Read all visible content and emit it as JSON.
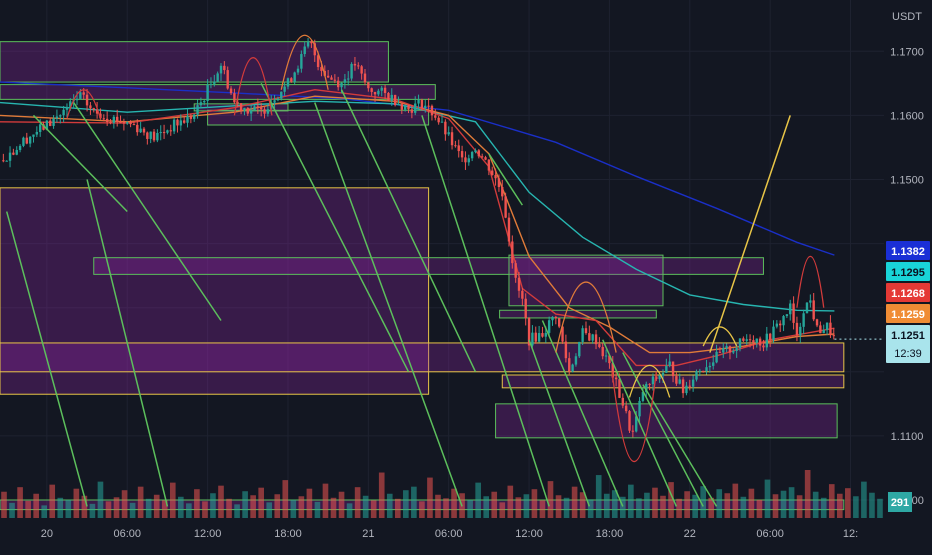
{
  "chart_data": {
    "type": "candlestick",
    "title": "",
    "currency": "USDT",
    "y_range": [
      1.1,
      1.178
    ],
    "y_ticks": [
      "1.1700",
      "1.1600",
      "1.1500",
      "1.1100",
      "1.1000"
    ],
    "x_ticks": [
      "20",
      "06:00",
      "12:00",
      "18:00",
      "21",
      "06:00",
      "12:00",
      "18:00",
      "22",
      "06:00",
      "12:"
    ],
    "x_tick_times": [
      0,
      6,
      12,
      18,
      24,
      30,
      36,
      42,
      48,
      54,
      60
    ],
    "x_range_hours": [
      -3.5,
      62.5
    ],
    "grid": true,
    "close_path": [
      [
        -3.5,
        1.153
      ],
      [
        -2.5,
        1.1545
      ],
      [
        -1.5,
        1.1565
      ],
      [
        0,
        1.1585
      ],
      [
        1.5,
        1.161
      ],
      [
        2.5,
        1.163
      ],
      [
        3.5,
        1.1605
      ],
      [
        5,
        1.1595
      ],
      [
        6.5,
        1.1585
      ],
      [
        8,
        1.1565
      ],
      [
        9.5,
        1.1585
      ],
      [
        11,
        1.16
      ],
      [
        12,
        1.164
      ],
      [
        13,
        1.168
      ],
      [
        14,
        1.162
      ],
      [
        15,
        1.161
      ],
      [
        16,
        1.1605
      ],
      [
        17,
        1.163
      ],
      [
        18,
        1.165
      ],
      [
        19,
        1.169
      ],
      [
        19.6,
        1.1715
      ],
      [
        20.3,
        1.168
      ],
      [
        21,
        1.166
      ],
      [
        22,
        1.165
      ],
      [
        23,
        1.168
      ],
      [
        24,
        1.164
      ],
      [
        25,
        1.1635
      ],
      [
        26,
        1.1625
      ],
      [
        27,
        1.161
      ],
      [
        28,
        1.162
      ],
      [
        29,
        1.16
      ],
      [
        30,
        1.1565
      ],
      [
        31,
        1.153
      ],
      [
        32,
        1.155
      ],
      [
        33,
        1.152
      ],
      [
        34,
        1.148
      ],
      [
        35,
        1.134
      ],
      [
        35.5,
        1.131
      ],
      [
        36,
        1.125
      ],
      [
        37,
        1.126
      ],
      [
        38,
        1.129
      ],
      [
        39,
        1.12
      ],
      [
        40,
        1.126
      ],
      [
        41,
        1.125
      ],
      [
        42,
        1.121
      ],
      [
        43,
        1.115
      ],
      [
        43.7,
        1.11
      ],
      [
        44.5,
        1.117
      ],
      [
        45.5,
        1.119
      ],
      [
        46.5,
        1.121
      ],
      [
        47.5,
        1.117
      ],
      [
        48.5,
        1.12
      ],
      [
        49.5,
        1.1215
      ],
      [
        50.5,
        1.123
      ],
      [
        51.5,
        1.124
      ],
      [
        52.5,
        1.1255
      ],
      [
        53.5,
        1.1245
      ],
      [
        54.5,
        1.127
      ],
      [
        55.5,
        1.13
      ],
      [
        56,
        1.125
      ],
      [
        56.5,
        1.13
      ],
      [
        57,
        1.131
      ],
      [
        57.5,
        1.1265
      ],
      [
        58.3,
        1.127
      ],
      [
        58.8,
        1.1251
      ]
    ],
    "volume_series": [
      52,
      30,
      61,
      34,
      48,
      25,
      66,
      40,
      36,
      58,
      44,
      28,
      72,
      33,
      41,
      55,
      30,
      62,
      38,
      46,
      35,
      70,
      42,
      29,
      57,
      33,
      49,
      64,
      38,
      27,
      53,
      45,
      60,
      31,
      47,
      75,
      36,
      43,
      58,
      32,
      68,
      40,
      52,
      29,
      61,
      44,
      35,
      90,
      48,
      38,
      55,
      62,
      33,
      80,
      46,
      39,
      58,
      49,
      36,
      70,
      43,
      52,
      31,
      64,
      41,
      47,
      57,
      35,
      73,
      45,
      40,
      62,
      51,
      37,
      85,
      48,
      55,
      42,
      66,
      39,
      50,
      60,
      44,
      71,
      38,
      53,
      46,
      63,
      40,
      57,
      49,
      68,
      42,
      58,
      36,
      76,
      47,
      54,
      61,
      45,
      95,
      52,
      40,
      67,
      48,
      59,
      43,
      72,
      50,
      38
    ],
    "moving_averages": [
      {
        "key": "ma_blue",
        "color": "#1a2fc7",
        "label": "1.1382",
        "points": [
          [
            -3.5,
            1.1652
          ],
          [
            6,
            1.1643
          ],
          [
            14,
            1.1635
          ],
          [
            22,
            1.1626
          ],
          [
            30,
            1.1608
          ],
          [
            38,
            1.1558
          ],
          [
            44,
            1.1505
          ],
          [
            50,
            1.1455
          ],
          [
            56,
            1.1402
          ],
          [
            58.8,
            1.1382
          ]
        ]
      },
      {
        "key": "ma_teal",
        "color": "#27b5b0",
        "label": "1.1295",
        "points": [
          [
            -3.5,
            1.162
          ],
          [
            6,
            1.1605
          ],
          [
            14,
            1.1615
          ],
          [
            20,
            1.1622
          ],
          [
            26,
            1.1618
          ],
          [
            32,
            1.159
          ],
          [
            36,
            1.148
          ],
          [
            40,
            1.141
          ],
          [
            44,
            1.136
          ],
          [
            48,
            1.132
          ],
          [
            52,
            1.1305
          ],
          [
            56,
            1.1296
          ],
          [
            58.8,
            1.1295
          ]
        ]
      },
      {
        "key": "ma_orange",
        "color": "#e07b39",
        "label": "1.1259",
        "points": [
          [
            -3.5,
            1.16
          ],
          [
            6,
            1.159
          ],
          [
            14,
            1.1605
          ],
          [
            20,
            1.163
          ],
          [
            26,
            1.1622
          ],
          [
            30,
            1.16
          ],
          [
            33,
            1.154
          ],
          [
            36,
            1.138
          ],
          [
            39,
            1.13
          ],
          [
            42,
            1.127
          ],
          [
            45,
            1.123
          ],
          [
            48,
            1.123
          ],
          [
            52,
            1.124
          ],
          [
            56,
            1.1255
          ],
          [
            58.8,
            1.1259
          ]
        ]
      },
      {
        "key": "ma_red",
        "color": "#d23b3b",
        "label": "1.1268",
        "points": [
          [
            -3.5,
            1.159
          ],
          [
            6,
            1.1588
          ],
          [
            14,
            1.1612
          ],
          [
            20,
            1.164
          ],
          [
            26,
            1.1625
          ],
          [
            30,
            1.1595
          ],
          [
            33,
            1.152
          ],
          [
            35.5,
            1.133
          ],
          [
            38,
            1.129
          ],
          [
            41,
            1.128
          ],
          [
            44,
            1.121
          ],
          [
            47,
            1.121
          ],
          [
            50,
            1.1225
          ],
          [
            54,
            1.125
          ],
          [
            58.8,
            1.1268
          ]
        ]
      }
    ],
    "zones": [
      {
        "t0": -3.5,
        "t1": 25.5,
        "p0": 1.1652,
        "p1": 1.1715,
        "stroke": "#5cbf5c"
      },
      {
        "t0": 12,
        "t1": 28.5,
        "p0": 1.1585,
        "p1": 1.1608,
        "stroke": "#5cbf5c"
      },
      {
        "t0": 11,
        "t1": 18,
        "p0": 1.1607,
        "p1": 1.1618,
        "stroke": "#5cbf5c"
      },
      {
        "t0": -3.5,
        "t1": 29,
        "p0": 1.1625,
        "p1": 1.1648,
        "stroke": "#5cbf5c"
      },
      {
        "t0": -3.5,
        "t1": 28.5,
        "p0": 1.1165,
        "p1": 1.1487,
        "stroke": "#e8c547"
      },
      {
        "t0": 3.5,
        "t1": 53.5,
        "p0": 1.1352,
        "p1": 1.1378,
        "stroke": "#5cbf5c"
      },
      {
        "t0": 34.5,
        "t1": 46,
        "p0": 1.1303,
        "p1": 1.1382,
        "stroke": "#5cbf5c"
      },
      {
        "t0": 33.8,
        "t1": 45.5,
        "p0": 1.1284,
        "p1": 1.1296,
        "stroke": "#5cbf5c"
      },
      {
        "t0": -3.5,
        "t1": 59.5,
        "p0": 1.12,
        "p1": 1.1245,
        "stroke": "#e8c547"
      },
      {
        "t0": 34,
        "t1": 59.5,
        "p0": 1.1175,
        "p1": 1.1195,
        "stroke": "#e8c547"
      },
      {
        "t0": 33.5,
        "t1": 59,
        "p0": 1.1097,
        "p1": 1.115,
        "stroke": "#5cbf5c"
      },
      {
        "t0": -3.5,
        "t1": 59.5,
        "p0": 1.0985,
        "p1": 1.1,
        "stroke": "#5cbf5c"
      }
    ],
    "trend_lines": [
      {
        "t0": -1,
        "p0": 1.16,
        "t1": 6,
        "p1": 1.145,
        "color": "#5cbf5c"
      },
      {
        "t0": 2,
        "p0": 1.162,
        "t1": 13,
        "p1": 1.128,
        "color": "#5cbf5c"
      },
      {
        "t0": 3,
        "p0": 1.15,
        "t1": 9,
        "p1": 1.099,
        "color": "#5cbf5c"
      },
      {
        "t0": -3,
        "p0": 1.145,
        "t1": 3,
        "p1": 1.099,
        "color": "#5cbf5c"
      },
      {
        "t0": 16,
        "p0": 1.165,
        "t1": 27,
        "p1": 1.12,
        "color": "#5cbf5c"
      },
      {
        "t0": 20,
        "p0": 1.162,
        "t1": 31,
        "p1": 1.099,
        "color": "#5cbf5c"
      },
      {
        "t0": 22,
        "p0": 1.164,
        "t1": 32,
        "p1": 1.12,
        "color": "#5cbf5c"
      },
      {
        "t0": 28,
        "p0": 1.16,
        "t1": 37.5,
        "p1": 1.099,
        "color": "#5cbf5c"
      },
      {
        "t0": 36,
        "p0": 1.125,
        "t1": 40.5,
        "p1": 1.099,
        "color": "#5cbf5c"
      },
      {
        "t0": 37,
        "p0": 1.128,
        "t1": 43,
        "p1": 1.099,
        "color": "#5cbf5c"
      },
      {
        "t0": 41.5,
        "p0": 1.125,
        "t1": 47,
        "p1": 1.099,
        "color": "#5cbf5c"
      },
      {
        "t0": 43,
        "p0": 1.123,
        "t1": 49,
        "p1": 1.099,
        "color": "#5cbf5c"
      },
      {
        "t0": 44.5,
        "p0": 1.118,
        "t1": 50,
        "p1": 1.099,
        "color": "#5cbf5c"
      },
      {
        "t0": 33,
        "p0": 1.154,
        "t1": 35.5,
        "p1": 1.146,
        "color": "#5cbf5c"
      },
      {
        "t0": 49.5,
        "p0": 1.123,
        "t1": 55.5,
        "p1": 1.16,
        "color": "#e8c547"
      }
    ],
    "arcs": [
      {
        "t0": 17.5,
        "t1": 21,
        "p": 1.164,
        "peak": 1.1725,
        "color": "#e07b39"
      },
      {
        "t0": 14,
        "t1": 16.8,
        "p": 1.16,
        "peak": 1.169,
        "color": "#d23b3b"
      },
      {
        "t0": 1.5,
        "t1": 4,
        "p": 1.1595,
        "peak": 1.164,
        "color": "#d23b3b"
      },
      {
        "t0": 38,
        "t1": 42.5,
        "p": 1.123,
        "peak": 1.134,
        "color": "#e07b39"
      },
      {
        "t0": 56,
        "t1": 58,
        "p": 1.13,
        "peak": 1.138,
        "color": "#d23b3b"
      },
      {
        "t0": 43.5,
        "t1": 46.5,
        "p": 1.116,
        "peak": 1.121,
        "color": "#e8c547"
      },
      {
        "t0": 42.2,
        "t1": 45.5,
        "p": 1.12,
        "peak": 1.106,
        "color": "#d23b3b"
      },
      {
        "t0": 49,
        "t1": 51.5,
        "p": 1.124,
        "peak": 1.127,
        "color": "#e8c547"
      }
    ],
    "price_labels": [
      {
        "key": "ma_blue",
        "value": "1.1382",
        "bg": "#1a2fd6",
        "fg": "#ffffff"
      },
      {
        "key": "ma_teal",
        "value": "1.1295",
        "bg": "#19d4d8",
        "fg": "#0b1220"
      },
      {
        "key": "ma_red",
        "value": "1.1268",
        "bg": "#e53935",
        "fg": "#ffffff"
      },
      {
        "key": "ma_orange",
        "value": "1.1259",
        "bg": "#f08c34",
        "fg": "#ffffff"
      },
      {
        "key": "last",
        "value": "1.1251",
        "sub": "12:39",
        "bg": "#a9e4ec",
        "fg": "#0b1220"
      }
    ],
    "volume_label": {
      "value": "291",
      "bg": "#2ea8a4",
      "fg": "#ffffff"
    }
  }
}
